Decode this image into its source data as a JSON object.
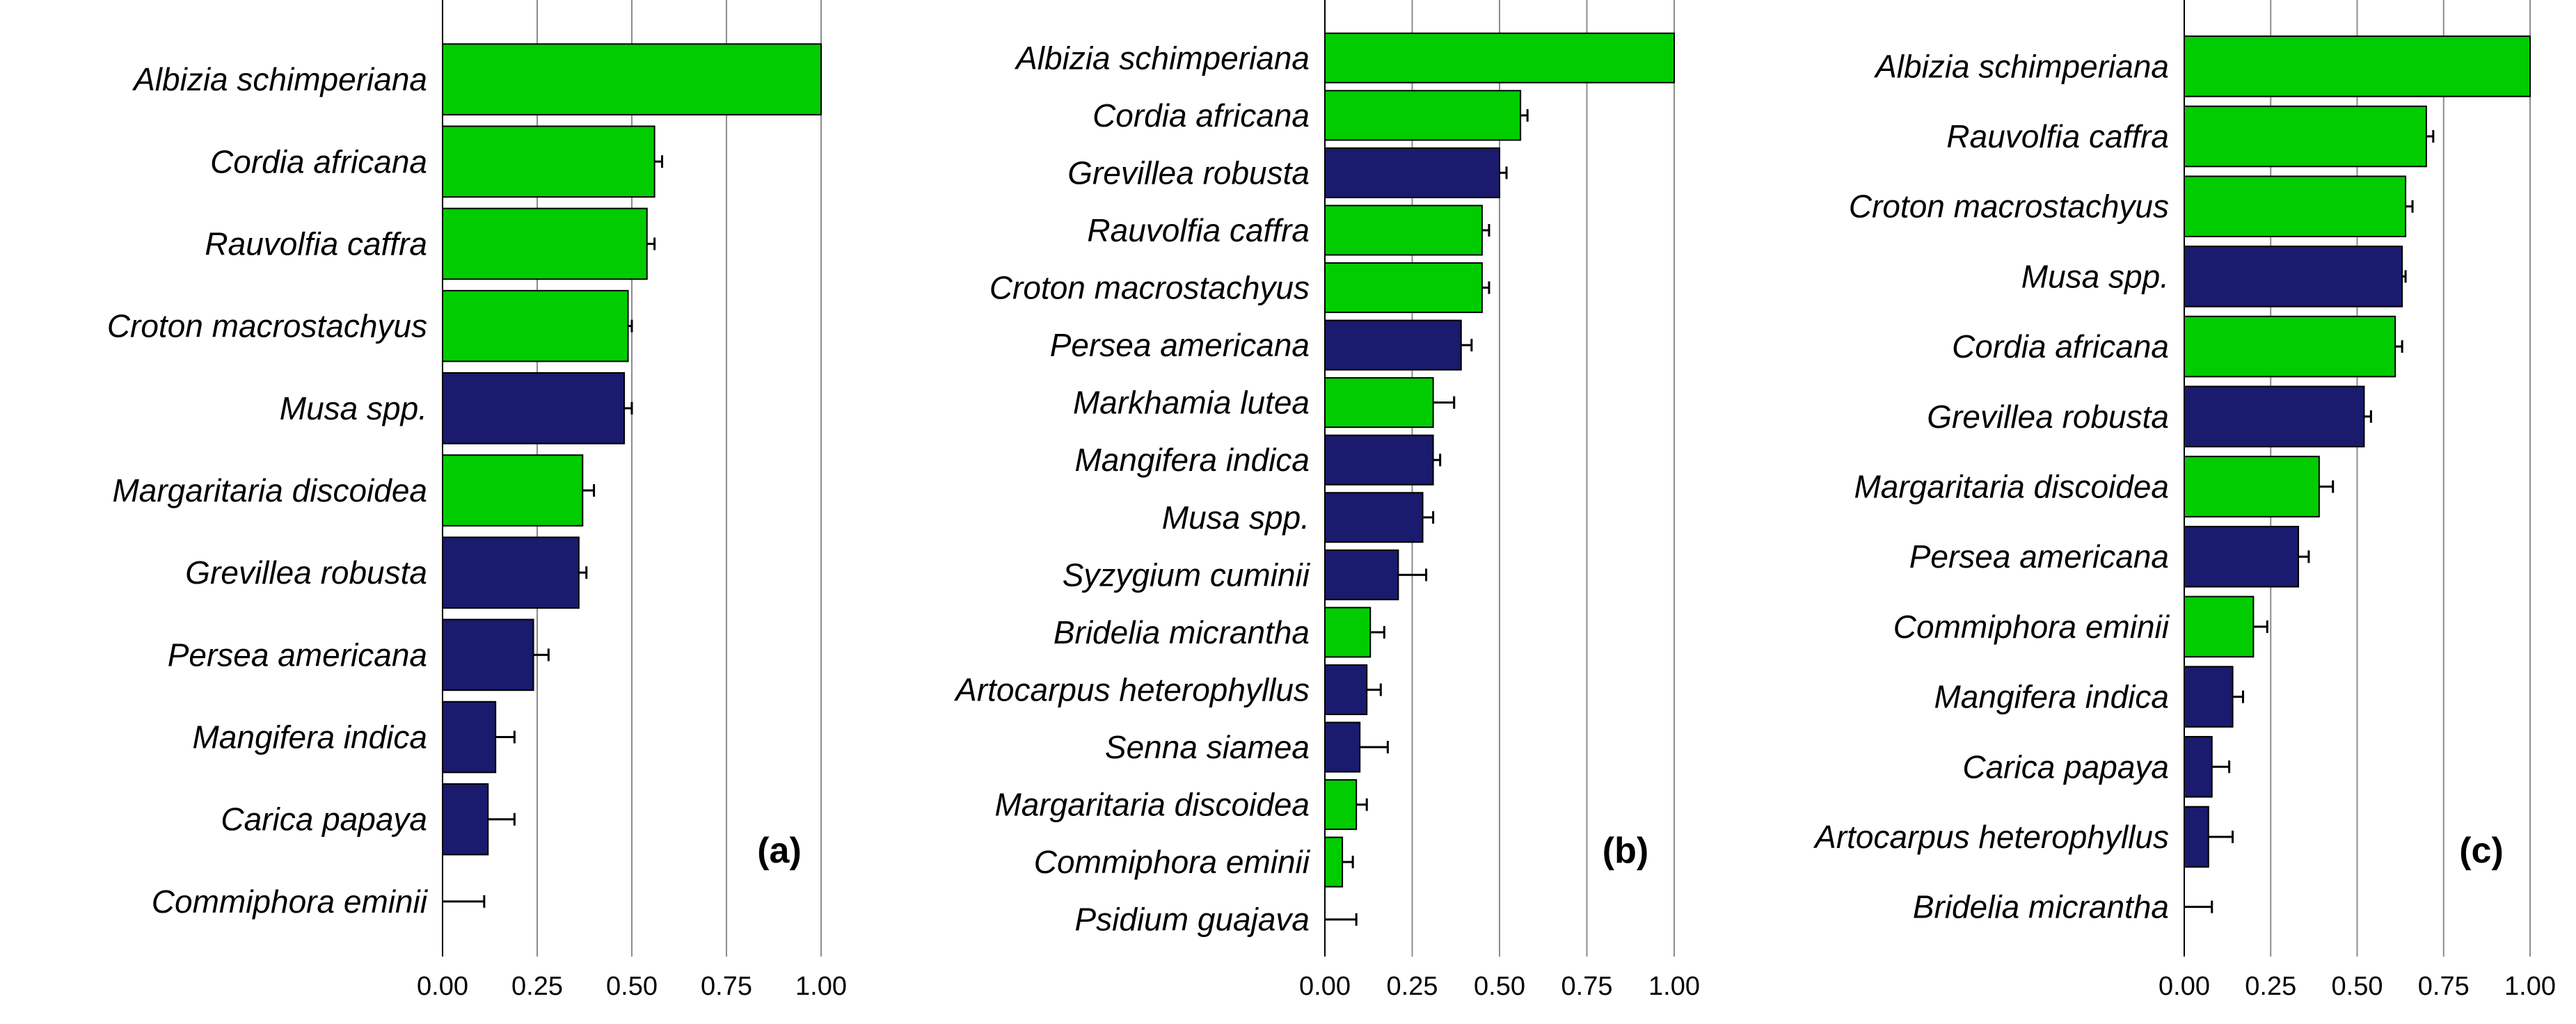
{
  "colors": {
    "green": "#00cc00",
    "navy": "#1a1a6e"
  },
  "chart_data": [
    {
      "type": "bar",
      "orientation": "horizontal",
      "panel_label": "(a)",
      "xlim": [
        0,
        1
      ],
      "ticks": [
        "0.00",
        "0.25",
        "0.50",
        "0.75",
        "1.00"
      ],
      "tick_values": [
        0,
        0.25,
        0.5,
        0.75,
        1
      ],
      "categories": [
        "Albizia schimperiana",
        "Cordia africana",
        "Rauvolfia caffra",
        "Croton macrostachyus",
        "Musa spp.",
        "Margaritaria discoidea",
        "Grevillea robusta",
        "Persea americana",
        "Mangifera indica",
        "Carica papaya",
        "Commiphora eminii"
      ],
      "values": [
        1.0,
        0.56,
        0.54,
        0.49,
        0.48,
        0.37,
        0.36,
        0.24,
        0.14,
        0.12,
        0.0
      ],
      "errors": [
        0.0,
        0.02,
        0.02,
        0.01,
        0.02,
        0.03,
        0.02,
        0.04,
        0.05,
        0.07,
        0.11
      ],
      "groups": [
        "green",
        "green",
        "green",
        "green",
        "navy",
        "green",
        "navy",
        "navy",
        "navy",
        "navy",
        "green"
      ]
    },
    {
      "type": "bar",
      "orientation": "horizontal",
      "panel_label": "(b)",
      "xlim": [
        0,
        1
      ],
      "ticks": [
        "0.00",
        "0.25",
        "0.50",
        "0.75",
        "1.00"
      ],
      "tick_values": [
        0,
        0.25,
        0.5,
        0.75,
        1
      ],
      "categories": [
        "Albizia schimperiana",
        "Cordia africana",
        "Grevillea robusta",
        "Rauvolfia caffra",
        "Croton macrostachyus",
        "Persea americana",
        "Markhamia lutea",
        "Mangifera indica",
        "Musa spp.",
        "Syzygium cuminii",
        "Bridelia micrantha",
        "Artocarpus heterophyllus",
        "Senna siamea",
        "Margaritaria discoidea",
        "Commiphora eminii",
        "Psidium guajava"
      ],
      "values": [
        1.0,
        0.56,
        0.5,
        0.45,
        0.45,
        0.39,
        0.31,
        0.31,
        0.28,
        0.21,
        0.13,
        0.12,
        0.1,
        0.09,
        0.05,
        0.0
      ],
      "errors": [
        0.0,
        0.02,
        0.02,
        0.02,
        0.02,
        0.03,
        0.06,
        0.02,
        0.03,
        0.08,
        0.04,
        0.04,
        0.08,
        0.03,
        0.03,
        0.09
      ],
      "groups": [
        "green",
        "green",
        "navy",
        "green",
        "green",
        "navy",
        "green",
        "navy",
        "navy",
        "navy",
        "green",
        "navy",
        "navy",
        "green",
        "green",
        "navy"
      ]
    },
    {
      "type": "bar",
      "orientation": "horizontal",
      "panel_label": "(c)",
      "xlim": [
        0,
        1
      ],
      "ticks": [
        "0.00",
        "0.25",
        "0.50",
        "0.75",
        "1.00"
      ],
      "tick_values": [
        0,
        0.25,
        0.5,
        0.75,
        1
      ],
      "categories": [
        "Albizia schimperiana",
        "Rauvolfia caffra",
        "Croton macrostachyus",
        "Musa spp.",
        "Cordia africana",
        "Grevillea robusta",
        "Margaritaria discoidea",
        "Persea americana",
        "Commiphora eminii",
        "Mangifera indica",
        "Carica papaya",
        "Artocarpus heterophyllus",
        "Bridelia micrantha"
      ],
      "values": [
        1.0,
        0.7,
        0.64,
        0.63,
        0.61,
        0.52,
        0.39,
        0.33,
        0.2,
        0.14,
        0.08,
        0.07,
        0.0
      ],
      "errors": [
        0.0,
        0.02,
        0.02,
        0.01,
        0.02,
        0.02,
        0.04,
        0.03,
        0.04,
        0.03,
        0.05,
        0.07,
        0.08
      ],
      "groups": [
        "green",
        "green",
        "green",
        "navy",
        "green",
        "navy",
        "green",
        "navy",
        "green",
        "navy",
        "navy",
        "navy",
        "green"
      ]
    }
  ]
}
